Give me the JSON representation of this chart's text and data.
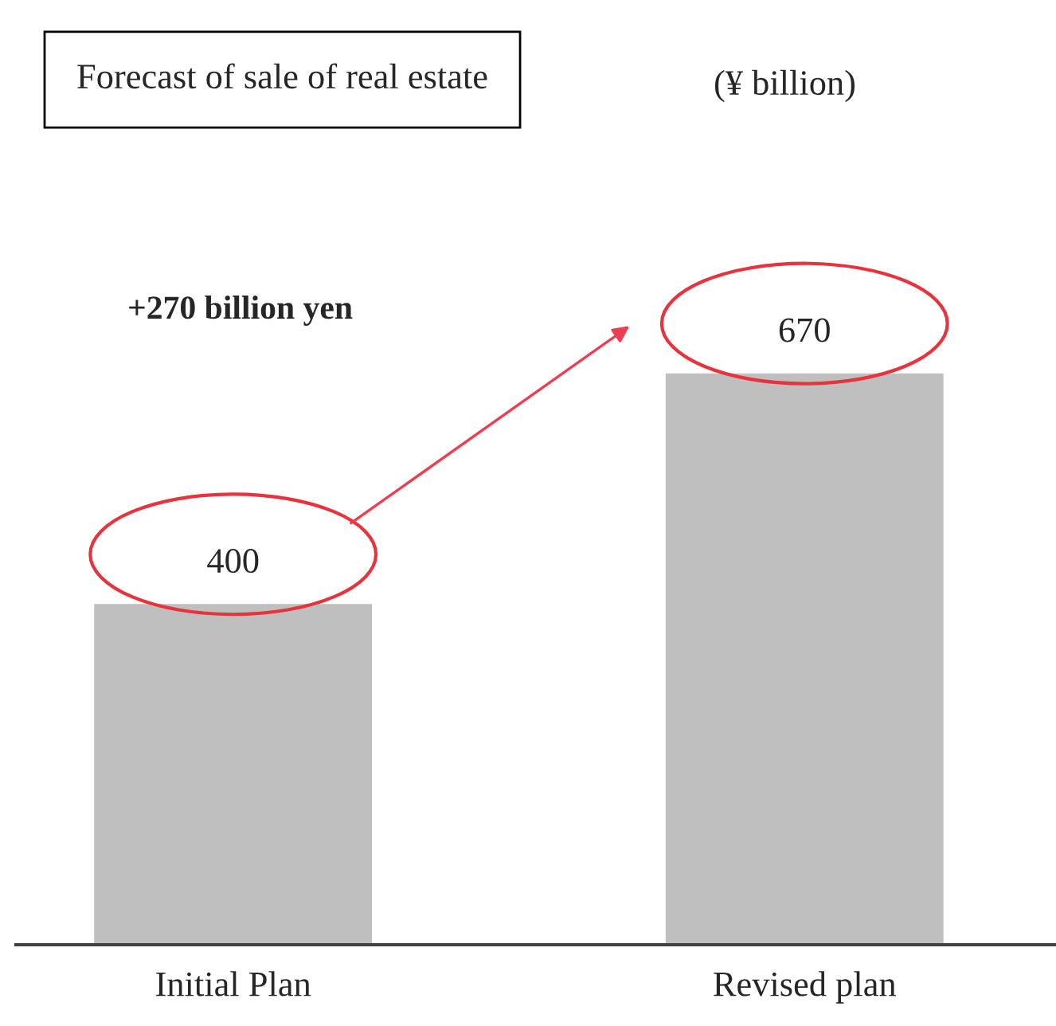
{
  "chart_data": {
    "type": "bar",
    "title": "Forecast of sale of real estate",
    "subtitle": "(¥ billion)",
    "categories": [
      "Initial Plan",
      "Revised plan"
    ],
    "values": [
      400,
      670
    ],
    "color": "#bfbfbf",
    "data_labels": true,
    "annotations": [
      "+270 billion yen"
    ],
    "grid": false,
    "legend": false
  }
}
